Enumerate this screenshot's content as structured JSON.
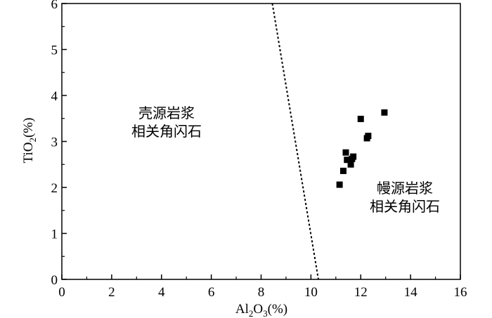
{
  "chart_data": {
    "type": "scatter",
    "xlim": [
      0,
      16
    ],
    "ylim": [
      0,
      6
    ],
    "x_ticks": [
      0,
      2,
      4,
      6,
      8,
      10,
      12,
      14,
      16
    ],
    "y_ticks": [
      0,
      1,
      2,
      3,
      4,
      5,
      6
    ],
    "grid": false,
    "xlabel": {
      "base": "Al",
      "sub1": "2",
      "mid": "O",
      "sub2": "3",
      "tail": "(%)"
    },
    "ylabel": {
      "base": "TiO",
      "sub": "2",
      "tail": "(%)"
    },
    "series": [
      {
        "marker": "square",
        "color": "#000000",
        "points": [
          {
            "x": 11.15,
            "y": 2.06
          },
          {
            "x": 11.3,
            "y": 2.36
          },
          {
            "x": 11.4,
            "y": 2.76
          },
          {
            "x": 11.45,
            "y": 2.6
          },
          {
            "x": 11.6,
            "y": 2.5
          },
          {
            "x": 11.65,
            "y": 2.62
          },
          {
            "x": 11.7,
            "y": 2.67
          },
          {
            "x": 12.0,
            "y": 3.49
          },
          {
            "x": 12.25,
            "y": 3.07
          },
          {
            "x": 12.3,
            "y": 3.12
          },
          {
            "x": 12.95,
            "y": 3.63
          }
        ]
      }
    ],
    "divider_line": {
      "style": "dotted",
      "from": {
        "x": 8.45,
        "y": 6
      },
      "to": {
        "x": 10.3,
        "y": 0
      }
    },
    "annotations": {
      "crustal": {
        "line1": "壳源岩浆",
        "line2": "相关角闪石"
      },
      "mantle": {
        "line1": "幔源岩浆",
        "line2": "相关角闪石"
      }
    }
  }
}
